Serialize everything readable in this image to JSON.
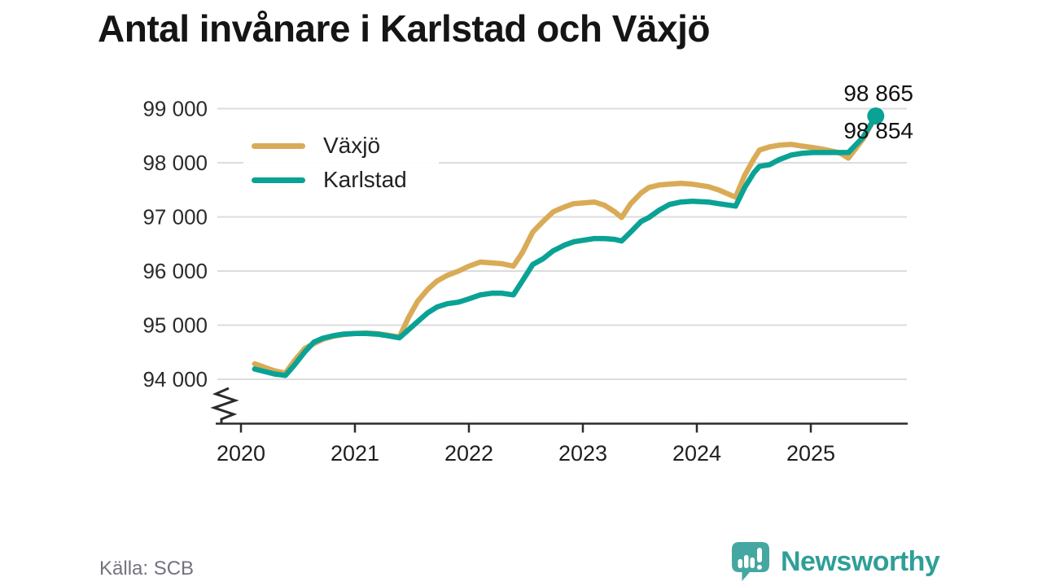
{
  "title": "Antal invånare i Karlstad och Växjö",
  "source": "Källa: SCB",
  "branding": {
    "name": "Newsworthy",
    "color": "#2f9f98",
    "icon_color": "#45a7a1",
    "icon": "speech-bubble-bar-chart-icon"
  },
  "colors": {
    "vaxjo": "#d9ab57",
    "karlstad": "#0aa295",
    "gridline": "#dcdcdc",
    "axis": "#2b2b2b",
    "text": "#222222",
    "muted_text": "#73737f"
  },
  "chart_data": {
    "type": "line",
    "title": "Antal invånare i Karlstad och Växjö",
    "xlabel": "",
    "ylabel": "",
    "grid": "horizontal",
    "legend_position": "top-left-inside",
    "xlim": [
      2019.78,
      2025.85
    ],
    "ylim": [
      94000,
      99000
    ],
    "x_axis": {
      "tick_values": [
        2020,
        2021,
        2022,
        2023,
        2024,
        2025
      ],
      "tick_labels": [
        "2020",
        "2021",
        "2022",
        "2023",
        "2024",
        "2025"
      ]
    },
    "y_axis": {
      "tick_values": [
        94000,
        95000,
        96000,
        97000,
        98000,
        99000
      ],
      "tick_labels": [
        "94 000",
        "95 000",
        "96 000",
        "97 000",
        "98 000",
        "99 000"
      ],
      "axis_break": true
    },
    "series": [
      {
        "name": "Växjö",
        "color": "#d9ab57",
        "end_label": "98 854",
        "end_dot": false,
        "x": [
          2020.12,
          2020.29,
          2020.39,
          2020.47,
          2020.56,
          2020.64,
          2020.72,
          2020.81,
          2020.9,
          2021.0,
          2021.1,
          2021.21,
          2021.3,
          2021.39,
          2021.47,
          2021.55,
          2021.64,
          2021.72,
          2021.81,
          2021.91,
          2022.0,
          2022.1,
          2022.2,
          2022.29,
          2022.39,
          2022.47,
          2022.56,
          2022.65,
          2022.74,
          2022.84,
          2022.92,
          2023.01,
          2023.1,
          2023.19,
          2023.28,
          2023.34,
          2023.42,
          2023.51,
          2023.58,
          2023.67,
          2023.76,
          2023.86,
          2023.96,
          2024.1,
          2024.19,
          2024.29,
          2024.34,
          2024.42,
          2024.5,
          2024.55,
          2024.64,
          2024.72,
          2024.83,
          2024.92,
          2025.02,
          2025.11,
          2025.21,
          2025.26,
          2025.33,
          2025.46,
          2025.57
        ],
        "y": [
          94285,
          94160,
          94115,
          94345,
          94570,
          94660,
          94740,
          94795,
          94825,
          94845,
          94855,
          94840,
          94810,
          94780,
          95140,
          95440,
          95665,
          95815,
          95920,
          96000,
          96090,
          96165,
          96150,
          96135,
          96090,
          96345,
          96720,
          96915,
          97095,
          97185,
          97245,
          97260,
          97275,
          97215,
          97095,
          96990,
          97245,
          97440,
          97545,
          97590,
          97605,
          97620,
          97605,
          97560,
          97500,
          97410,
          97365,
          97770,
          98070,
          98235,
          98295,
          98325,
          98340,
          98310,
          98280,
          98250,
          98205,
          98175,
          98085,
          98445,
          98854
        ]
      },
      {
        "name": "Karlstad",
        "color": "#0aa295",
        "end_label": "98 865",
        "end_dot": true,
        "x": [
          2020.12,
          2020.29,
          2020.39,
          2020.47,
          2020.56,
          2020.64,
          2020.72,
          2020.81,
          2020.9,
          2021.0,
          2021.1,
          2021.21,
          2021.3,
          2021.39,
          2021.47,
          2021.55,
          2021.64,
          2021.72,
          2021.81,
          2021.91,
          2022.0,
          2022.1,
          2022.2,
          2022.29,
          2022.39,
          2022.47,
          2022.56,
          2022.65,
          2022.74,
          2022.84,
          2022.92,
          2023.01,
          2023.1,
          2023.19,
          2023.28,
          2023.34,
          2023.42,
          2023.51,
          2023.58,
          2023.67,
          2023.76,
          2023.86,
          2023.96,
          2024.1,
          2024.19,
          2024.29,
          2024.34,
          2024.42,
          2024.5,
          2024.55,
          2024.64,
          2024.72,
          2024.83,
          2024.92,
          2025.02,
          2025.11,
          2025.21,
          2025.26,
          2025.33,
          2025.46,
          2025.57
        ],
        "y": [
          94190,
          94100,
          94070,
          94265,
          94505,
          94685,
          94760,
          94805,
          94835,
          94845,
          94845,
          94830,
          94800,
          94765,
          94915,
          95065,
          95230,
          95335,
          95395,
          95425,
          95485,
          95560,
          95590,
          95590,
          95560,
          95820,
          96120,
          96225,
          96375,
          96480,
          96540,
          96570,
          96600,
          96600,
          96585,
          96555,
          96720,
          96915,
          96990,
          97125,
          97230,
          97275,
          97290,
          97275,
          97245,
          97215,
          97200,
          97545,
          97815,
          97935,
          97965,
          98055,
          98145,
          98175,
          98190,
          98190,
          98190,
          98190,
          98190,
          98475,
          98865
        ]
      }
    ]
  }
}
